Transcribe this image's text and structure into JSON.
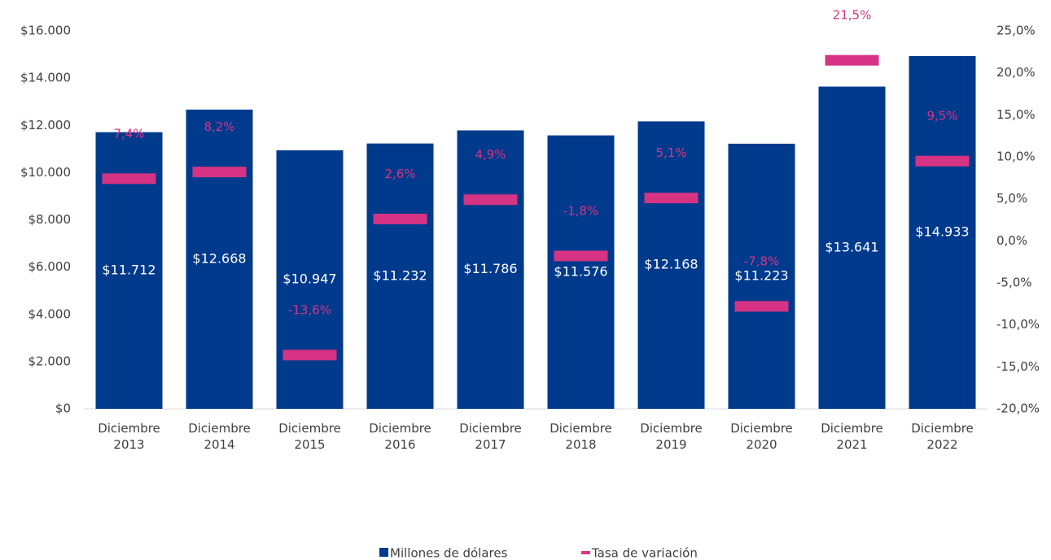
{
  "chart_data": {
    "type": "bar",
    "categories": [
      "Diciembre 2013",
      "Diciembre 2014",
      "Diciembre 2015",
      "Diciembre 2016",
      "Diciembre 2017",
      "Diciembre 2018",
      "Diciembre 2019",
      "Diciembre 2020",
      "Diciembre 2021",
      "Diciembre 2022"
    ],
    "series": [
      {
        "name": "Millones de dólares",
        "type": "bar",
        "color": "#003a8c",
        "values": [
          11712,
          12668,
          10947,
          11232,
          11786,
          11576,
          12168,
          11223,
          13641,
          14933
        ],
        "value_labels": [
          "$11.712",
          "$12.668",
          "$10.947",
          "$11.232",
          "$11.786",
          "$11.576",
          "$12.168",
          "$11.223",
          "$13.641",
          "$14.933"
        ]
      },
      {
        "name": "Tasa de variación",
        "type": "marker",
        "axis": "y2",
        "color": "#d63384",
        "values": [
          7.4,
          8.2,
          -13.6,
          2.6,
          4.9,
          -1.8,
          5.1,
          -7.8,
          21.5,
          9.5
        ],
        "value_labels": [
          "7,4%",
          "8,2%",
          "-13,6%",
          "2,6%",
          "4,9%",
          "-1,8%",
          "5,1%",
          "-7,8%",
          "21,5%",
          "9,5%"
        ]
      }
    ],
    "ylim": [
      0,
      16000
    ],
    "yticks": [
      {
        "value": 0,
        "label": "$0"
      },
      {
        "value": 2000,
        "label": "$2.000"
      },
      {
        "value": 4000,
        "label": "$4.000"
      },
      {
        "value": 6000,
        "label": "$6.000"
      },
      {
        "value": 8000,
        "label": "$8.000"
      },
      {
        "value": 10000,
        "label": "$10.000"
      },
      {
        "value": 12000,
        "label": "$12.000"
      },
      {
        "value": 14000,
        "label": "$14.000"
      },
      {
        "value": 16000,
        "label": "$16.000"
      }
    ],
    "y2lim": [
      -20,
      25
    ],
    "y2ticks": [
      {
        "value": -20,
        "label": "-20,0%"
      },
      {
        "value": -15,
        "label": "-15,0%"
      },
      {
        "value": -10,
        "label": "-10,0%"
      },
      {
        "value": -5,
        "label": "-5,0%"
      },
      {
        "value": 0,
        "label": "0,0%"
      },
      {
        "value": 5,
        "label": "5,0%"
      },
      {
        "value": 10,
        "label": "10,0%"
      },
      {
        "value": 15,
        "label": "15,0%"
      },
      {
        "value": 20,
        "label": "20,0%"
      },
      {
        "value": 25,
        "label": "25,0%"
      }
    ],
    "grid": false,
    "legend": "bottom"
  }
}
